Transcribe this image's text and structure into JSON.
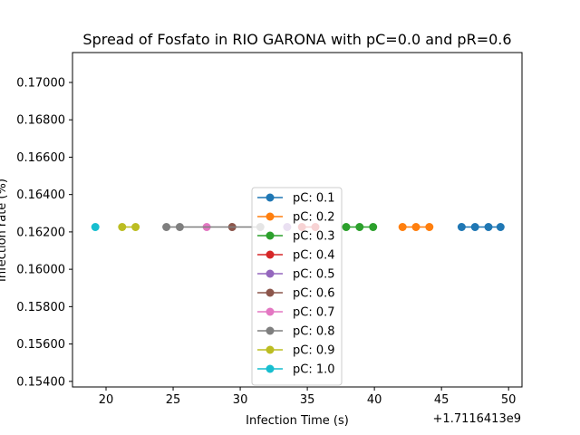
{
  "chart_data": {
    "type": "line",
    "title": "Spread of Fosfato in RIO GARONA with pC=0.0 and pR=0.6",
    "xlabel": "Infection Time (s)",
    "ylabel": "Infection rate (%)",
    "x_offset_label": "+1.7116413e9",
    "xlim": [
      17.5,
      51.0
    ],
    "ylim": [
      0.1537,
      0.1716
    ],
    "xticks": [
      20,
      25,
      30,
      35,
      40,
      45,
      50
    ],
    "xtick_labels": [
      "20",
      "25",
      "30",
      "35",
      "40",
      "45",
      "50"
    ],
    "yticks": [
      0.154,
      0.156,
      0.158,
      0.16,
      0.162,
      0.164,
      0.166,
      0.168,
      0.17
    ],
    "ytick_labels": [
      "0.15400",
      "0.15600",
      "0.15800",
      "0.16000",
      "0.16200",
      "0.16400",
      "0.16600",
      "0.16800",
      "0.17000"
    ],
    "grid": false,
    "legend_placement": "center-bottom",
    "series": [
      {
        "name": "pC: 0.1",
        "color": "#1f77b4",
        "x": [
          46.5,
          47.5,
          48.5,
          49.4
        ],
        "y": [
          0.16226,
          0.16226,
          0.16226,
          0.16226
        ]
      },
      {
        "name": "pC: 0.2",
        "color": "#ff7f0e",
        "x": [
          42.1,
          43.1,
          44.1
        ],
        "y": [
          0.16226,
          0.16226,
          0.16226
        ]
      },
      {
        "name": "pC: 0.3",
        "color": "#2ca02c",
        "x": [
          37.9,
          38.9,
          39.9
        ],
        "y": [
          0.16226,
          0.16226,
          0.16226
        ]
      },
      {
        "name": "pC: 0.4",
        "color": "#d62728",
        "x": [
          34.6,
          35.6
        ],
        "y": [
          0.16226,
          0.16226
        ]
      },
      {
        "name": "pC: 0.5",
        "color": "#9467bd",
        "x": [
          33.5
        ],
        "y": [
          0.16226
        ]
      },
      {
        "name": "pC: 0.6",
        "color": "#8c564b",
        "x": [
          29.4
        ],
        "y": [
          0.16226
        ]
      },
      {
        "name": "pC: 0.7",
        "color": "#e377c2",
        "x": [
          27.5
        ],
        "y": [
          0.16226
        ]
      },
      {
        "name": "pC: 0.8",
        "color": "#7f7f7f",
        "x": [
          24.5,
          25.5,
          31.5
        ],
        "y": [
          0.16226,
          0.16226,
          0.16226
        ]
      },
      {
        "name": "pC: 0.9",
        "color": "#bcbd22",
        "x": [
          21.2,
          22.2
        ],
        "y": [
          0.16226,
          0.16226
        ]
      },
      {
        "name": "pC: 1.0",
        "color": "#17becf",
        "x": [
          19.2
        ],
        "y": [
          0.16226
        ]
      }
    ]
  }
}
